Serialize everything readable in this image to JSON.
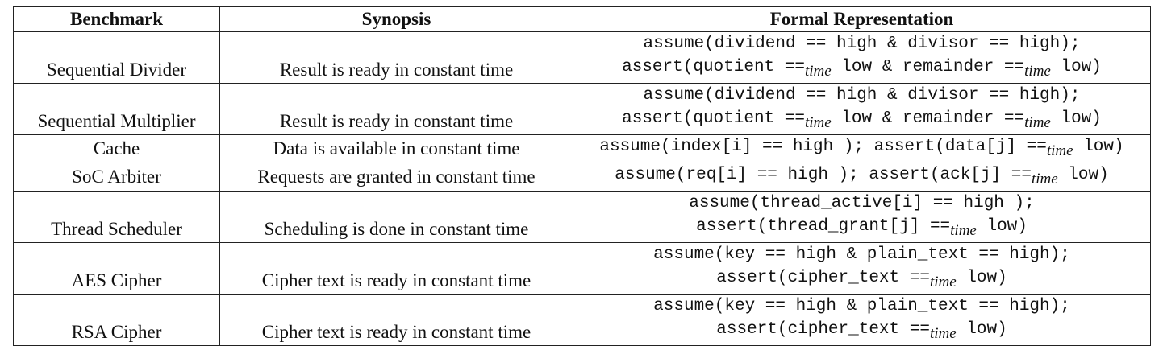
{
  "headers": [
    "Benchmark",
    "Synopsis",
    "Formal Representation"
  ],
  "rows": [
    {
      "benchmark": "Sequential Divider",
      "synopsis": "Result is ready in constant time",
      "formal": [
        [
          "assume(dividend == high & divisor == high);"
        ],
        [
          "assert(quotient ==",
          "time",
          " low & remainder ==",
          "time",
          " low)"
        ]
      ]
    },
    {
      "benchmark": "Sequential Multiplier",
      "synopsis": "Result is ready in constant time",
      "formal": [
        [
          "assume(dividend == high & divisor == high);"
        ],
        [
          "assert(quotient ==",
          "time",
          " low & remainder ==",
          "time",
          " low)"
        ]
      ]
    },
    {
      "benchmark": "Cache",
      "synopsis": "Data is available in constant time",
      "formal": [
        [
          "assume(index[i] == high ); assert(data[j] ==",
          "time",
          " low)"
        ]
      ]
    },
    {
      "benchmark": "SoC Arbiter",
      "synopsis": "Requests are granted in constant time",
      "formal": [
        [
          "assume(req[i] == high ); assert(ack[j] ==",
          "time",
          " low)"
        ]
      ]
    },
    {
      "benchmark": "Thread Scheduler",
      "synopsis": "Scheduling is done in constant time",
      "formal": [
        [
          "assume(thread_active[i] == high );"
        ],
        [
          "assert(thread_grant[j] ==",
          "time",
          " low)"
        ]
      ]
    },
    {
      "benchmark": "AES Cipher",
      "synopsis": "Cipher text is ready in constant time",
      "formal": [
        [
          "assume(key == high & plain_text == high);"
        ],
        [
          "assert(cipher_text ==",
          "time",
          " low)"
        ]
      ]
    },
    {
      "benchmark": "RSA Cipher",
      "synopsis": "Cipher text is ready in constant time",
      "formal": [
        [
          "assume(key == high & plain_text == high);"
        ],
        [
          "assert(cipher_text ==",
          "time",
          " low)"
        ]
      ]
    }
  ]
}
